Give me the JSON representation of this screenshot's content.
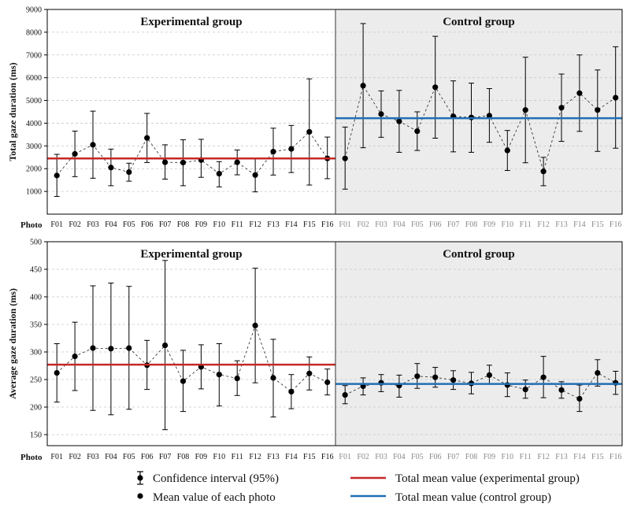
{
  "colors": {
    "experimental_mean": "#c62828",
    "control_mean": "#1f6fb4",
    "control_background": "#ececec",
    "control_tick_label": "#8a8a8a",
    "points": "#000000",
    "grid": "#c8c8c8"
  },
  "x_label": "Photo",
  "legend": {
    "ci_label": "Confidence interval (95%)",
    "mean_point_label": "Mean value of each photo",
    "exp_mean_label": "Total mean value (experimental group)",
    "ctrl_mean_label": "Total mean value (control group)"
  },
  "chart_data": [
    {
      "type": "scatter",
      "ylabel": "Total gaze duration (ms)",
      "ylim": [
        0,
        9000
      ],
      "yticks": [
        1000,
        2000,
        3000,
        4000,
        5000,
        6000,
        7000,
        8000,
        9000
      ],
      "grid": true,
      "categories": [
        "F01",
        "F02",
        "F03",
        "F04",
        "F05",
        "F06",
        "F07",
        "F08",
        "F09",
        "F10",
        "F11",
        "F12",
        "F13",
        "F14",
        "F15",
        "F16"
      ],
      "groups": [
        {
          "name": "Experimental group",
          "mean": [
            1700,
            2650,
            3050,
            2050,
            1850,
            3350,
            2280,
            2270,
            2380,
            1780,
            2280,
            1720,
            2750,
            2870,
            3620,
            2450
          ],
          "ci_low": [
            780,
            1650,
            1580,
            1250,
            1450,
            2270,
            1540,
            1250,
            1620,
            1200,
            1730,
            980,
            1720,
            1830,
            1280,
            1560
          ],
          "ci_high": [
            2630,
            3650,
            4530,
            2860,
            2240,
            4430,
            3050,
            3270,
            3290,
            2310,
            2820,
            2460,
            3780,
            3900,
            5950,
            3390
          ],
          "total_mean": 2450
        },
        {
          "name": "Control group",
          "mean": [
            2450,
            5650,
            4400,
            4080,
            3650,
            5580,
            4300,
            4250,
            4330,
            2800,
            4580,
            1880,
            4680,
            5320,
            4580,
            5120
          ],
          "ci_low": [
            1100,
            2920,
            3380,
            2720,
            2800,
            3340,
            2740,
            2720,
            3160,
            1920,
            2260,
            1250,
            3200,
            3640,
            2760,
            2900
          ],
          "ci_high": [
            3830,
            8380,
            5420,
            5440,
            4500,
            7820,
            5860,
            5760,
            5520,
            3680,
            6900,
            2500,
            6160,
            7000,
            6340,
            7360
          ],
          "total_mean": 4220
        }
      ]
    },
    {
      "type": "scatter",
      "ylabel": "Average gaze duration (ms)",
      "ylim": [
        130,
        500
      ],
      "yticks": [
        150,
        200,
        250,
        300,
        350,
        400,
        450,
        500
      ],
      "grid": true,
      "categories": [
        "F01",
        "F02",
        "F03",
        "F04",
        "F05",
        "F06",
        "F07",
        "F08",
        "F09",
        "F10",
        "F11",
        "F12",
        "F13",
        "F14",
        "F15",
        "F16"
      ],
      "groups": [
        {
          "name": "Experimental group",
          "mean": [
            262,
            292,
            307,
            306,
            307,
            276,
            312,
            247,
            273,
            259,
            252,
            348,
            253,
            228,
            261,
            245
          ],
          "ci_low": [
            209,
            230,
            194,
            186,
            196,
            232,
            159,
            192,
            233,
            202,
            221,
            244,
            182,
            197,
            231,
            222
          ],
          "ci_high": [
            315,
            354,
            420,
            425,
            419,
            321,
            466,
            303,
            313,
            315,
            284,
            452,
            323,
            259,
            291,
            269
          ],
          "total_mean": 277
        },
        {
          "name": "Control group",
          "mean": [
            222,
            238,
            244,
            239,
            256,
            254,
            249,
            243,
            258,
            240,
            232,
            254,
            231,
            215,
            262,
            244
          ],
          "ci_low": [
            206,
            222,
            228,
            218,
            234,
            236,
            232,
            224,
            242,
            219,
            216,
            217,
            216,
            192,
            238,
            223
          ],
          "ci_high": [
            239,
            253,
            259,
            258,
            279,
            272,
            266,
            263,
            276,
            262,
            249,
            292,
            246,
            240,
            286,
            265
          ],
          "total_mean": 242
        }
      ]
    }
  ]
}
